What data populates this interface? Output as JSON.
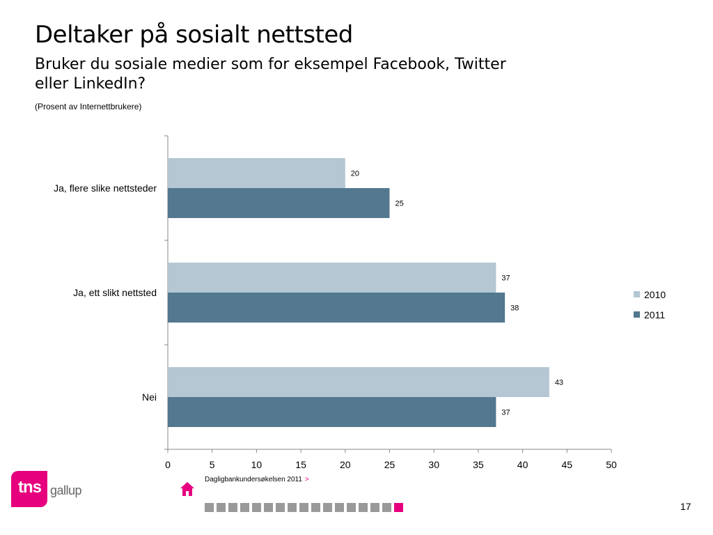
{
  "header": {
    "title": "Deltaker på sosialt nettsted",
    "subtitle": "Bruker du sosiale medier som for eksempel Facebook, Twitter eller LinkedIn?",
    "note": "(Prosent av Internettbrukere)"
  },
  "chart_data": {
    "type": "bar",
    "orientation": "horizontal",
    "categories": [
      "Ja, flere slike nettsteder",
      "Ja, ett slikt nettsted",
      "Nei"
    ],
    "series": [
      {
        "name": "2010",
        "values": [
          20,
          37,
          43
        ],
        "color": "#b4c7d3"
      },
      {
        "name": "2011",
        "values": [
          25,
          38,
          37
        ],
        "color": "#53788f"
      }
    ],
    "xlim": [
      0,
      50
    ],
    "xticks": [
      0,
      5,
      10,
      15,
      20,
      25,
      30,
      35,
      40,
      45,
      50
    ],
    "legend_position": "right",
    "grid": false
  },
  "footer": {
    "logo_main": "tns",
    "logo_secondary": "gallup",
    "source": "Dagligbankundersøkelsen 2011",
    "source_arrow": ">",
    "page_number": "17",
    "progress": {
      "total": 17,
      "current": 17
    },
    "accent_color": "#e6007e"
  }
}
